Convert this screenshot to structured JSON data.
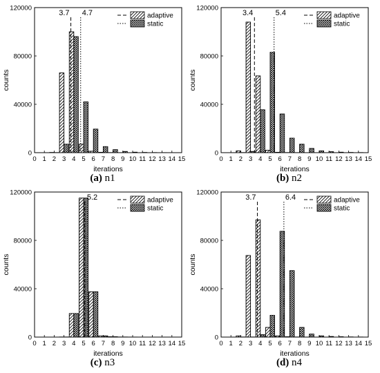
{
  "chart_data": [
    {
      "type": "bar",
      "caption_letter": "(a)",
      "caption_name": "n1",
      "xlabel": "iterations",
      "ylabel": "counts",
      "x_ticks": [
        0,
        1,
        2,
        3,
        4,
        5,
        6,
        7,
        8,
        9,
        10,
        11,
        12,
        13,
        14,
        15
      ],
      "y_ticks": [
        0,
        40000,
        80000,
        120000
      ],
      "xlim": [
        0,
        15
      ],
      "ylim": [
        0,
        120000
      ],
      "legend_position": "top-right",
      "series": [
        {
          "name": "adaptive",
          "pattern": "diagonal-hatch",
          "mean_line": "dashed",
          "mean": 3.7,
          "mean_label": "3.7",
          "x": [
            2,
            3,
            4,
            5,
            6,
            7,
            8,
            9,
            10,
            11,
            12,
            13,
            14
          ],
          "values": [
            200,
            66000,
            100000,
            7000,
            1200,
            300,
            100,
            50,
            20,
            10,
            5,
            3,
            2
          ]
        },
        {
          "name": "static",
          "pattern": "crosshatch",
          "mean_line": "dotted",
          "mean": 4.7,
          "mean_label": "4.7",
          "x": [
            2,
            3,
            4,
            5,
            6,
            7,
            8,
            9,
            10,
            11,
            12,
            13,
            14
          ],
          "values": [
            100,
            7000,
            96000,
            42000,
            19500,
            5000,
            2500,
            1000,
            400,
            200,
            100,
            50,
            20
          ]
        }
      ]
    },
    {
      "type": "bar",
      "caption_letter": "(b)",
      "caption_name": "n2",
      "xlabel": "iterations",
      "ylabel": "counts",
      "x_ticks": [
        0,
        1,
        2,
        3,
        4,
        5,
        6,
        7,
        8,
        9,
        10,
        11,
        12,
        13,
        14,
        15
      ],
      "y_ticks": [
        0,
        40000,
        80000,
        120000
      ],
      "xlim": [
        0,
        15
      ],
      "ylim": [
        0,
        120000
      ],
      "legend_position": "top-right",
      "series": [
        {
          "name": "adaptive",
          "pattern": "diagonal-hatch",
          "mean_line": "dashed",
          "mean": 3.4,
          "mean_label": "3.4",
          "x": [
            2,
            3,
            4,
            5,
            6,
            7,
            8,
            9,
            10,
            11,
            12,
            13,
            14
          ],
          "values": [
            1500,
            108000,
            63500,
            2000,
            300,
            100,
            50,
            20,
            10,
            5,
            3,
            2,
            1
          ]
        },
        {
          "name": "static",
          "pattern": "crosshatch",
          "mean_line": "dotted",
          "mean": 5.4,
          "mean_label": "5.4",
          "x": [
            2,
            3,
            4,
            5,
            6,
            7,
            8,
            9,
            10,
            11,
            12,
            13,
            14
          ],
          "values": [
            100,
            1000,
            35500,
            83000,
            32000,
            12000,
            7000,
            3500,
            1500,
            800,
            400,
            200,
            100
          ]
        }
      ]
    },
    {
      "type": "bar",
      "caption_letter": "(c)",
      "caption_name": "n3",
      "xlabel": "iterations",
      "ylabel": "counts",
      "x_ticks": [
        0,
        1,
        2,
        3,
        4,
        5,
        6,
        7,
        8,
        9,
        10,
        11,
        12,
        13,
        14,
        15
      ],
      "y_ticks": [
        0,
        40000,
        80000,
        120000
      ],
      "xlim": [
        0,
        15
      ],
      "ylim": [
        0,
        120000
      ],
      "legend_position": "top-right",
      "series": [
        {
          "name": "adaptive",
          "pattern": "diagonal-hatch",
          "mean_line": "dashed",
          "mean": 5.1,
          "mean_label": "",
          "x": [
            3,
            4,
            5,
            6,
            7,
            8,
            9,
            10,
            11,
            12,
            13,
            14
          ],
          "values": [
            100,
            19500,
            115000,
            37500,
            1000,
            300,
            100,
            50,
            20,
            10,
            5,
            2
          ]
        },
        {
          "name": "static",
          "pattern": "crosshatch",
          "mean_line": "dotted",
          "mean": 5.2,
          "mean_label": "5.2",
          "x": [
            3,
            4,
            5,
            6,
            7,
            8,
            9,
            10,
            11,
            12,
            13,
            14
          ],
          "values": [
            100,
            19500,
            115000,
            37500,
            1000,
            300,
            100,
            50,
            20,
            10,
            5,
            2
          ]
        }
      ]
    },
    {
      "type": "bar",
      "caption_letter": "(d)",
      "caption_name": "n4",
      "xlabel": "iterations",
      "ylabel": "counts",
      "x_ticks": [
        0,
        1,
        2,
        3,
        4,
        5,
        6,
        7,
        8,
        9,
        10,
        11,
        12,
        13,
        14,
        15
      ],
      "y_ticks": [
        0,
        40000,
        80000,
        120000
      ],
      "xlim": [
        0,
        15
      ],
      "ylim": [
        0,
        120000
      ],
      "legend_position": "top-right",
      "series": [
        {
          "name": "adaptive",
          "pattern": "diagonal-hatch",
          "mean_line": "dashed",
          "mean": 3.7,
          "mean_label": "3.7",
          "x": [
            2,
            3,
            4,
            5,
            6,
            7,
            8,
            9,
            10,
            11,
            12,
            13,
            14
          ],
          "values": [
            1000,
            67500,
            97000,
            8000,
            1000,
            300,
            100,
            50,
            20,
            10,
            5,
            3,
            2
          ]
        },
        {
          "name": "static",
          "pattern": "crosshatch",
          "mean_line": "dotted",
          "mean": 6.4,
          "mean_label": "6.4",
          "x": [
            2,
            3,
            4,
            5,
            6,
            7,
            8,
            9,
            10,
            11,
            12,
            13,
            14
          ],
          "values": [
            100,
            100,
            2000,
            18000,
            87500,
            55000,
            8000,
            2500,
            1000,
            500,
            300,
            150,
            80
          ]
        }
      ]
    }
  ]
}
